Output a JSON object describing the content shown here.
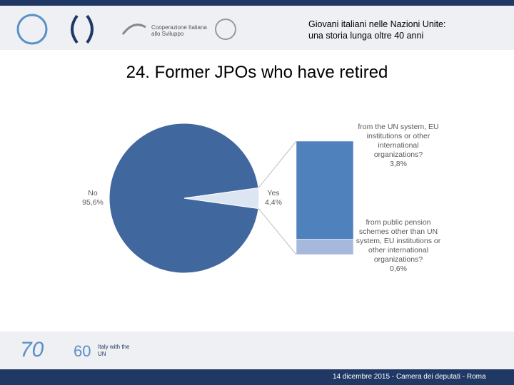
{
  "header": {
    "line1": "Giovani italiani nelle Nazioni Unite:",
    "line2": "una storia lunga oltre 40 anni",
    "logo_text1": "Cooperazione Italiana",
    "logo_text2": "allo Sviluppo"
  },
  "chart_data": {
    "type": "pie-of-bar",
    "title": "24. Former JPOs who have retired",
    "categories": [
      "No",
      "Yes"
    ],
    "values": [
      95.6,
      4.4
    ],
    "value_labels": [
      "95,6%",
      "4,4%"
    ],
    "colors": [
      "#41689e",
      "#dce6f2"
    ],
    "breakdown": {
      "categories": [
        "from the UN system, EU institutions or other international organizations?",
        "from public pension schemes other than UN system, EU institutions or other international organizations?"
      ],
      "values": [
        3.8,
        0.6
      ],
      "value_labels": [
        "3,8%",
        "0,6%"
      ],
      "colors": [
        "#4f81bd",
        "#a6b8dc"
      ]
    }
  },
  "footer": {
    "text": "14 dicembre 2015 - Camera dei deputati - Roma",
    "logo_70": "70",
    "logo_60": "60",
    "logo_italy": "Italy with the UN"
  }
}
